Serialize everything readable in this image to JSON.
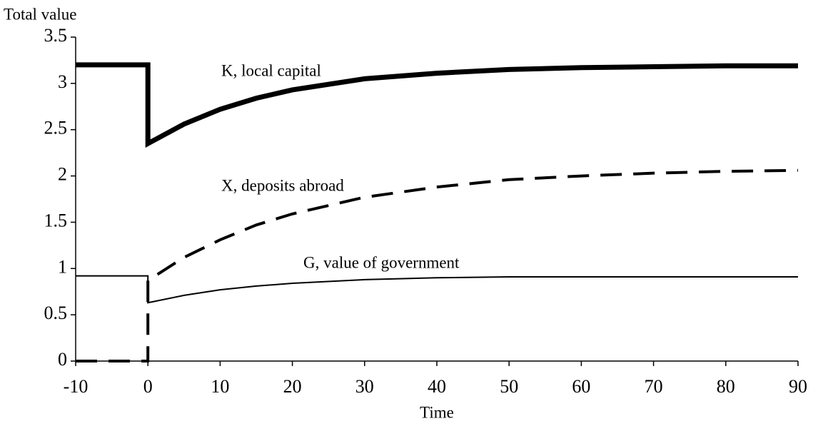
{
  "chart_data": {
    "type": "line",
    "y_label": "Total value",
    "x_label": "Time",
    "x": [
      -10,
      0,
      0,
      5,
      10,
      15,
      20,
      30,
      40,
      50,
      60,
      70,
      80,
      90
    ],
    "series": [
      {
        "name": "K, local capital",
        "color": "#000000",
        "values": [
          3.2,
          3.2,
          2.35,
          2.56,
          2.72,
          2.84,
          2.93,
          3.05,
          3.11,
          3.15,
          3.17,
          3.18,
          3.19,
          3.19
        ]
      },
      {
        "name": "X, deposits abroad",
        "color": "#000000",
        "values": [
          0,
          0,
          0.87,
          1.12,
          1.31,
          1.47,
          1.59,
          1.77,
          1.88,
          1.96,
          2.0,
          2.03,
          2.05,
          2.06
        ]
      },
      {
        "name": "G, value of government",
        "color": "#000000",
        "values": [
          0.92,
          0.92,
          0.63,
          0.71,
          0.77,
          0.81,
          0.84,
          0.88,
          0.9,
          0.91,
          0.91,
          0.91,
          0.91,
          0.91
        ]
      }
    ],
    "xlim": [
      -10,
      90
    ],
    "xticks": [
      -10,
      0,
      10,
      20,
      30,
      40,
      50,
      60,
      70,
      80,
      90
    ],
    "ylim": [
      0,
      3.5
    ],
    "yticks": [
      0,
      0.5,
      1,
      1.5,
      2,
      2.5,
      3,
      3.5
    ],
    "grid": false
  }
}
